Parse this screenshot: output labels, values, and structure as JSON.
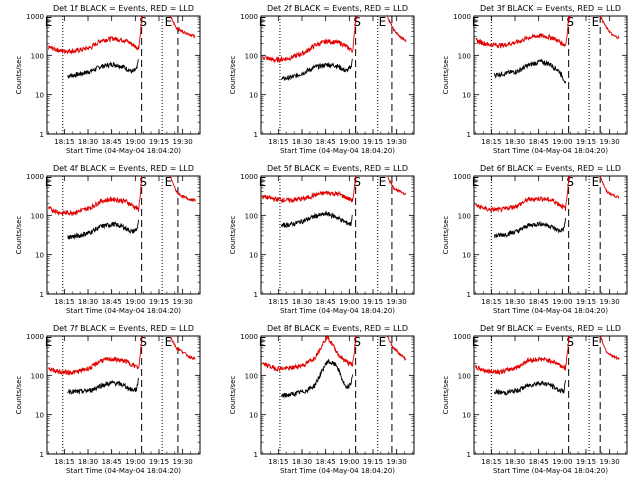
{
  "figure": {
    "y_axis_label": "Counts/sec",
    "x_axis_label": "Start Time (04-May-04 18:04:20)",
    "y_tick_labels": [
      "1000",
      "100",
      "10",
      "1"
    ],
    "x_tick_labels": [
      "18:15",
      "18:30",
      "18:45",
      "19:00",
      "19:15",
      "19:30"
    ],
    "marker_labels": {
      "E": "E",
      "S": "S"
    },
    "colors": {
      "events": "#000000",
      "lld": "#e00000"
    }
  },
  "chart_data": [
    {
      "type": "line",
      "title": "Det 1f BLACK = Events, RED = LLD",
      "xlabel": "Start Time (04-May-04 18:04:20)",
      "ylabel": "Counts/sec",
      "ylim": [
        1,
        1000
      ],
      "y_scale": "log",
      "x_ticks": [
        "18:15",
        "18:30",
        "18:45",
        "19:00",
        "19:15",
        "19:30"
      ],
      "series": [
        {
          "x": [
            "18:17",
            "18:24",
            "18:32",
            "18:38",
            "18:46",
            "18:52",
            "18:58",
            "19:01",
            "19:02"
          ],
          "values": [
            30,
            33,
            40,
            52,
            60,
            52,
            38,
            45,
            80
          ]
        },
        {
          "x": [
            "18:05",
            "18:13",
            "18:22",
            "18:32",
            "18:38",
            "18:46",
            "18:54",
            "19:00",
            "19:02",
            "19:03",
            "19:04",
            "19:05"
          ],
          "values": [
            160,
            130,
            130,
            160,
            240,
            270,
            240,
            170,
            150,
            300,
            900,
            1000
          ]
        }
      ],
      "lld_after_gap": {
        "x": [
          "19:22",
          "19:26",
          "19:30",
          "19:34",
          "19:38"
        ],
        "values": [
          1000,
          500,
          400,
          350,
          300
        ]
      },
      "vlines": [
        {
          "x": "18:14",
          "style": "dotted"
        },
        {
          "x": "19:04",
          "style": "dashed"
        },
        {
          "x": "19:17",
          "style": "dotted"
        },
        {
          "x": "19:27",
          "style": "dashed"
        }
      ],
      "markers": [
        {
          "x": "18:05",
          "text": "E"
        },
        {
          "x": "19:05",
          "text": "S"
        },
        {
          "x": "19:21",
          "text": "E"
        }
      ]
    },
    {
      "type": "line",
      "title": "Det 2f BLACK = Events, RED = LLD",
      "xlabel": "Start Time (04-May-04 18:04:20)",
      "ylabel": "Counts/sec",
      "ylim": [
        1,
        1000
      ],
      "y_scale": "log",
      "x_ticks": [
        "18:15",
        "18:30",
        "18:45",
        "19:00",
        "19:15",
        "19:30"
      ],
      "series": [
        {
          "x": [
            "18:17",
            "18:24",
            "18:32",
            "18:38",
            "18:46",
            "18:52",
            "18:58",
            "19:01",
            "19:02"
          ],
          "values": [
            25,
            28,
            38,
            50,
            58,
            55,
            40,
            50,
            85
          ]
        },
        {
          "x": [
            "18:05",
            "18:13",
            "18:22",
            "18:32",
            "18:38",
            "18:46",
            "18:54",
            "19:00",
            "19:02",
            "19:03",
            "19:04",
            "19:05"
          ],
          "values": [
            90,
            75,
            85,
            120,
            180,
            230,
            210,
            150,
            130,
            280,
            900,
            1000
          ]
        }
      ],
      "lld_after_gap": {
        "x": [
          "19:24",
          "19:28",
          "19:32",
          "19:36"
        ],
        "values": [
          1000,
          450,
          300,
          230
        ]
      },
      "vlines": [
        {
          "x": "18:16",
          "style": "dotted"
        },
        {
          "x": "19:04",
          "style": "dashed"
        },
        {
          "x": "19:18",
          "style": "dotted"
        },
        {
          "x": "19:27",
          "style": "dashed"
        }
      ],
      "markers": [
        {
          "x": "18:05",
          "text": "E"
        },
        {
          "x": "19:05",
          "text": "S"
        },
        {
          "x": "19:21",
          "text": "E"
        }
      ]
    },
    {
      "type": "line",
      "title": "Det 3f BLACK = Events, RED = LLD",
      "xlabel": "Start Time (04-May-04 18:04:20)",
      "ylabel": "Counts/sec",
      "ylim": [
        1,
        1000
      ],
      "y_scale": "log",
      "x_ticks": [
        "18:15",
        "18:30",
        "18:45",
        "19:00",
        "19:15",
        "19:30"
      ],
      "series": [
        {
          "x": [
            "18:17",
            "18:24",
            "18:32",
            "18:38",
            "18:46",
            "18:52",
            "18:58",
            "19:01",
            "19:02"
          ],
          "values": [
            32,
            35,
            40,
            55,
            70,
            60,
            40,
            25,
            20
          ]
        },
        {
          "x": [
            "18:05",
            "18:13",
            "18:22",
            "18:32",
            "18:38",
            "18:46",
            "18:54",
            "19:00",
            "19:02",
            "19:03",
            "19:04",
            "19:05"
          ],
          "values": [
            240,
            190,
            180,
            220,
            280,
            320,
            280,
            200,
            180,
            350,
            900,
            1000
          ]
        }
      ],
      "lld_after_gap": {
        "x": [
          "19:24",
          "19:28",
          "19:32",
          "19:36"
        ],
        "values": [
          1000,
          500,
          320,
          280
        ]
      },
      "vlines": [
        {
          "x": "18:15",
          "style": "dotted"
        },
        {
          "x": "19:04",
          "style": "dashed"
        },
        {
          "x": "19:17",
          "style": "dotted"
        },
        {
          "x": "19:24",
          "style": "dashed"
        }
      ],
      "markers": [
        {
          "x": "18:05",
          "text": "E"
        },
        {
          "x": "19:05",
          "text": "S"
        },
        {
          "x": "19:21",
          "text": "E"
        }
      ]
    },
    {
      "type": "line",
      "title": "Det 4f BLACK = Events, RED = LLD",
      "xlabel": "Start Time (04-May-04 18:04:20)",
      "ylabel": "Counts/sec",
      "ylim": [
        1,
        1000
      ],
      "y_scale": "log",
      "x_ticks": [
        "18:15",
        "18:30",
        "18:45",
        "19:00",
        "19:15",
        "19:30"
      ],
      "series": [
        {
          "x": [
            "18:17",
            "18:24",
            "18:32",
            "18:38",
            "18:46",
            "18:52",
            "18:58",
            "19:01",
            "19:02"
          ],
          "values": [
            28,
            30,
            38,
            52,
            60,
            52,
            38,
            45,
            70
          ]
        },
        {
          "x": [
            "18:05",
            "18:13",
            "18:22",
            "18:32",
            "18:38",
            "18:46",
            "18:54",
            "19:00",
            "19:02",
            "19:03",
            "19:04",
            "19:05"
          ],
          "values": [
            150,
            115,
            120,
            160,
            230,
            260,
            230,
            160,
            140,
            300,
            900,
            1000
          ]
        }
      ],
      "lld_after_gap": {
        "x": [
          "19:22",
          "19:26",
          "19:30",
          "19:34",
          "19:38"
        ],
        "values": [
          1000,
          400,
          300,
          260,
          240
        ]
      },
      "vlines": [
        {
          "x": "18:14",
          "style": "dotted"
        },
        {
          "x": "19:04",
          "style": "dashed"
        },
        {
          "x": "19:17",
          "style": "dotted"
        },
        {
          "x": "19:27",
          "style": "dashed"
        }
      ],
      "markers": [
        {
          "x": "18:05",
          "text": "E"
        },
        {
          "x": "19:05",
          "text": "S"
        },
        {
          "x": "19:21",
          "text": "E"
        }
      ]
    },
    {
      "type": "line",
      "title": "Det 5f BLACK = Events, RED = LLD",
      "xlabel": "Start Time (04-May-04 18:04:20)",
      "ylabel": "Counts/sec",
      "ylim": [
        1,
        1000
      ],
      "y_scale": "log",
      "x_ticks": [
        "18:15",
        "18:30",
        "18:45",
        "19:00",
        "19:15",
        "19:30"
      ],
      "series": [
        {
          "x": [
            "18:17",
            "18:24",
            "18:32",
            "18:38",
            "18:46",
            "18:52",
            "18:58",
            "19:01",
            "19:02"
          ],
          "values": [
            55,
            60,
            75,
            95,
            110,
            90,
            65,
            60,
            110
          ]
        },
        {
          "x": [
            "18:05",
            "18:13",
            "18:22",
            "18:32",
            "18:38",
            "18:46",
            "18:54",
            "19:00",
            "19:02",
            "19:03",
            "19:04",
            "19:05"
          ],
          "values": [
            300,
            260,
            240,
            270,
            330,
            380,
            340,
            260,
            240,
            400,
            900,
            1000
          ]
        }
      ],
      "lld_after_gap": {
        "x": [
          "19:24",
          "19:28",
          "19:32",
          "19:36"
        ],
        "values": [
          1000,
          500,
          400,
          350
        ]
      },
      "vlines": [
        {
          "x": "18:16",
          "style": "dotted"
        },
        {
          "x": "19:04",
          "style": "dashed"
        },
        {
          "x": "19:18",
          "style": "dotted"
        },
        {
          "x": "19:27",
          "style": "dashed"
        }
      ],
      "markers": [
        {
          "x": "18:05",
          "text": "E"
        },
        {
          "x": "19:05",
          "text": "S"
        },
        {
          "x": "19:21",
          "text": "E"
        }
      ]
    },
    {
      "type": "line",
      "title": "Det 6f BLACK = Events, RED = LLD",
      "xlabel": "Start Time (04-May-04 18:04:20)",
      "ylabel": "Counts/sec",
      "ylim": [
        1,
        1000
      ],
      "y_scale": "log",
      "x_ticks": [
        "18:15",
        "18:30",
        "18:45",
        "19:00",
        "19:15",
        "19:30"
      ],
      "series": [
        {
          "x": [
            "18:17",
            "18:24",
            "18:32",
            "18:38",
            "18:46",
            "18:52",
            "18:58",
            "19:01",
            "19:02"
          ],
          "values": [
            30,
            33,
            40,
            55,
            62,
            55,
            40,
            45,
            80
          ]
        },
        {
          "x": [
            "18:05",
            "18:13",
            "18:22",
            "18:32",
            "18:38",
            "18:46",
            "18:54",
            "19:00",
            "19:02",
            "19:03",
            "19:04",
            "19:05"
          ],
          "values": [
            180,
            140,
            140,
            180,
            250,
            270,
            240,
            170,
            150,
            300,
            900,
            1000
          ]
        }
      ],
      "lld_after_gap": {
        "x": [
          "19:24",
          "19:28",
          "19:32",
          "19:36"
        ],
        "values": [
          1000,
          400,
          330,
          280
        ]
      },
      "vlines": [
        {
          "x": "18:15",
          "style": "dotted"
        },
        {
          "x": "19:04",
          "style": "dashed"
        },
        {
          "x": "19:17",
          "style": "dotted"
        },
        {
          "x": "19:24",
          "style": "dashed"
        }
      ],
      "markers": [
        {
          "x": "18:05",
          "text": "E"
        },
        {
          "x": "19:05",
          "text": "S"
        },
        {
          "x": "19:21",
          "text": "E"
        }
      ]
    },
    {
      "type": "line",
      "title": "Det 7f BLACK = Events, RED = LLD",
      "xlabel": "Start Time (04-May-04 18:04:20)",
      "ylabel": "Counts/sec",
      "ylim": [
        1,
        1000
      ],
      "y_scale": "log",
      "x_ticks": [
        "18:15",
        "18:30",
        "18:45",
        "19:00",
        "19:15",
        "19:30"
      ],
      "series": [
        {
          "x": [
            "18:17",
            "18:24",
            "18:32",
            "18:38",
            "18:46",
            "18:52",
            "18:58",
            "19:01",
            "19:02"
          ],
          "values": [
            40,
            38,
            42,
            55,
            65,
            58,
            42,
            45,
            90
          ]
        },
        {
          "x": [
            "18:05",
            "18:13",
            "18:22",
            "18:32",
            "18:38",
            "18:46",
            "18:54",
            "19:00",
            "19:02",
            "19:03",
            "19:04",
            "19:05"
          ],
          "values": [
            150,
            120,
            120,
            160,
            240,
            260,
            230,
            170,
            150,
            300,
            900,
            1000
          ]
        }
      ],
      "lld_after_gap": {
        "x": [
          "19:22",
          "19:26",
          "19:30",
          "19:34",
          "19:38"
        ],
        "values": [
          1000,
          500,
          400,
          300,
          260
        ]
      },
      "vlines": [
        {
          "x": "18:14",
          "style": "dotted"
        },
        {
          "x": "19:04",
          "style": "dashed"
        },
        {
          "x": "19:17",
          "style": "dotted"
        },
        {
          "x": "19:27",
          "style": "dashed"
        }
      ],
      "markers": [
        {
          "x": "18:05",
          "text": "E"
        },
        {
          "x": "19:05",
          "text": "S"
        },
        {
          "x": "19:21",
          "text": "E"
        }
      ]
    },
    {
      "type": "line",
      "title": "Det 8f BLACK = Events, RED = LLD",
      "xlabel": "Start Time (04-May-04 18:04:20)",
      "ylabel": "Counts/sec",
      "ylim": [
        1,
        1000
      ],
      "y_scale": "log",
      "x_ticks": [
        "18:15",
        "18:30",
        "18:45",
        "19:00",
        "19:15",
        "19:30"
      ],
      "series": [
        {
          "x": [
            "18:17",
            "18:24",
            "18:32",
            "18:38",
            "18:46",
            "18:52",
            "18:58",
            "19:01",
            "19:02"
          ],
          "values": [
            30,
            33,
            40,
            55,
            230,
            180,
            45,
            60,
            110
          ]
        },
        {
          "x": [
            "18:05",
            "18:13",
            "18:22",
            "18:32",
            "18:38",
            "18:46",
            "18:54",
            "19:00",
            "19:02",
            "19:03",
            "19:04",
            "19:05"
          ],
          "values": [
            200,
            150,
            150,
            190,
            280,
            1000,
            300,
            200,
            180,
            350,
            900,
            1000
          ]
        }
      ],
      "lld_after_gap": {
        "x": [
          "19:24",
          "19:28",
          "19:32",
          "19:36"
        ],
        "values": [
          1000,
          500,
          350,
          250
        ]
      },
      "vlines": [
        {
          "x": "18:16",
          "style": "dotted"
        },
        {
          "x": "19:04",
          "style": "dashed"
        },
        {
          "x": "19:18",
          "style": "dotted"
        },
        {
          "x": "19:27",
          "style": "dashed"
        }
      ],
      "markers": [
        {
          "x": "18:05",
          "text": "E"
        },
        {
          "x": "19:05",
          "text": "S"
        },
        {
          "x": "19:21",
          "text": "E"
        }
      ]
    },
    {
      "type": "line",
      "title": "Det 9f BLACK = Events, RED = LLD",
      "xlabel": "Start Time (04-May-04 18:04:20)",
      "ylabel": "Counts/sec",
      "ylim": [
        1,
        1000
      ],
      "y_scale": "log",
      "x_ticks": [
        "18:15",
        "18:30",
        "18:45",
        "19:00",
        "19:15",
        "19:30"
      ],
      "series": [
        {
          "x": [
            "18:17",
            "18:24",
            "18:32",
            "18:38",
            "18:46",
            "18:52",
            "18:58",
            "19:01",
            "19:02"
          ],
          "values": [
            38,
            36,
            42,
            55,
            65,
            58,
            42,
            40,
            70
          ]
        },
        {
          "x": [
            "18:05",
            "18:13",
            "18:22",
            "18:32",
            "18:38",
            "18:46",
            "18:54",
            "19:00",
            "19:02",
            "19:03",
            "19:04",
            "19:05"
          ],
          "values": [
            160,
            125,
            125,
            165,
            240,
            260,
            230,
            170,
            150,
            300,
            900,
            1000
          ]
        }
      ],
      "lld_after_gap": {
        "x": [
          "19:24",
          "19:28",
          "19:32",
          "19:36"
        ],
        "values": [
          1000,
          400,
          300,
          260
        ]
      },
      "vlines": [
        {
          "x": "18:15",
          "style": "dotted"
        },
        {
          "x": "19:04",
          "style": "dashed"
        },
        {
          "x": "19:17",
          "style": "dotted"
        },
        {
          "x": "19:24",
          "style": "dashed"
        }
      ],
      "markers": [
        {
          "x": "18:05",
          "text": "E"
        },
        {
          "x": "19:05",
          "text": "S"
        },
        {
          "x": "19:21",
          "text": "E"
        }
      ]
    }
  ]
}
